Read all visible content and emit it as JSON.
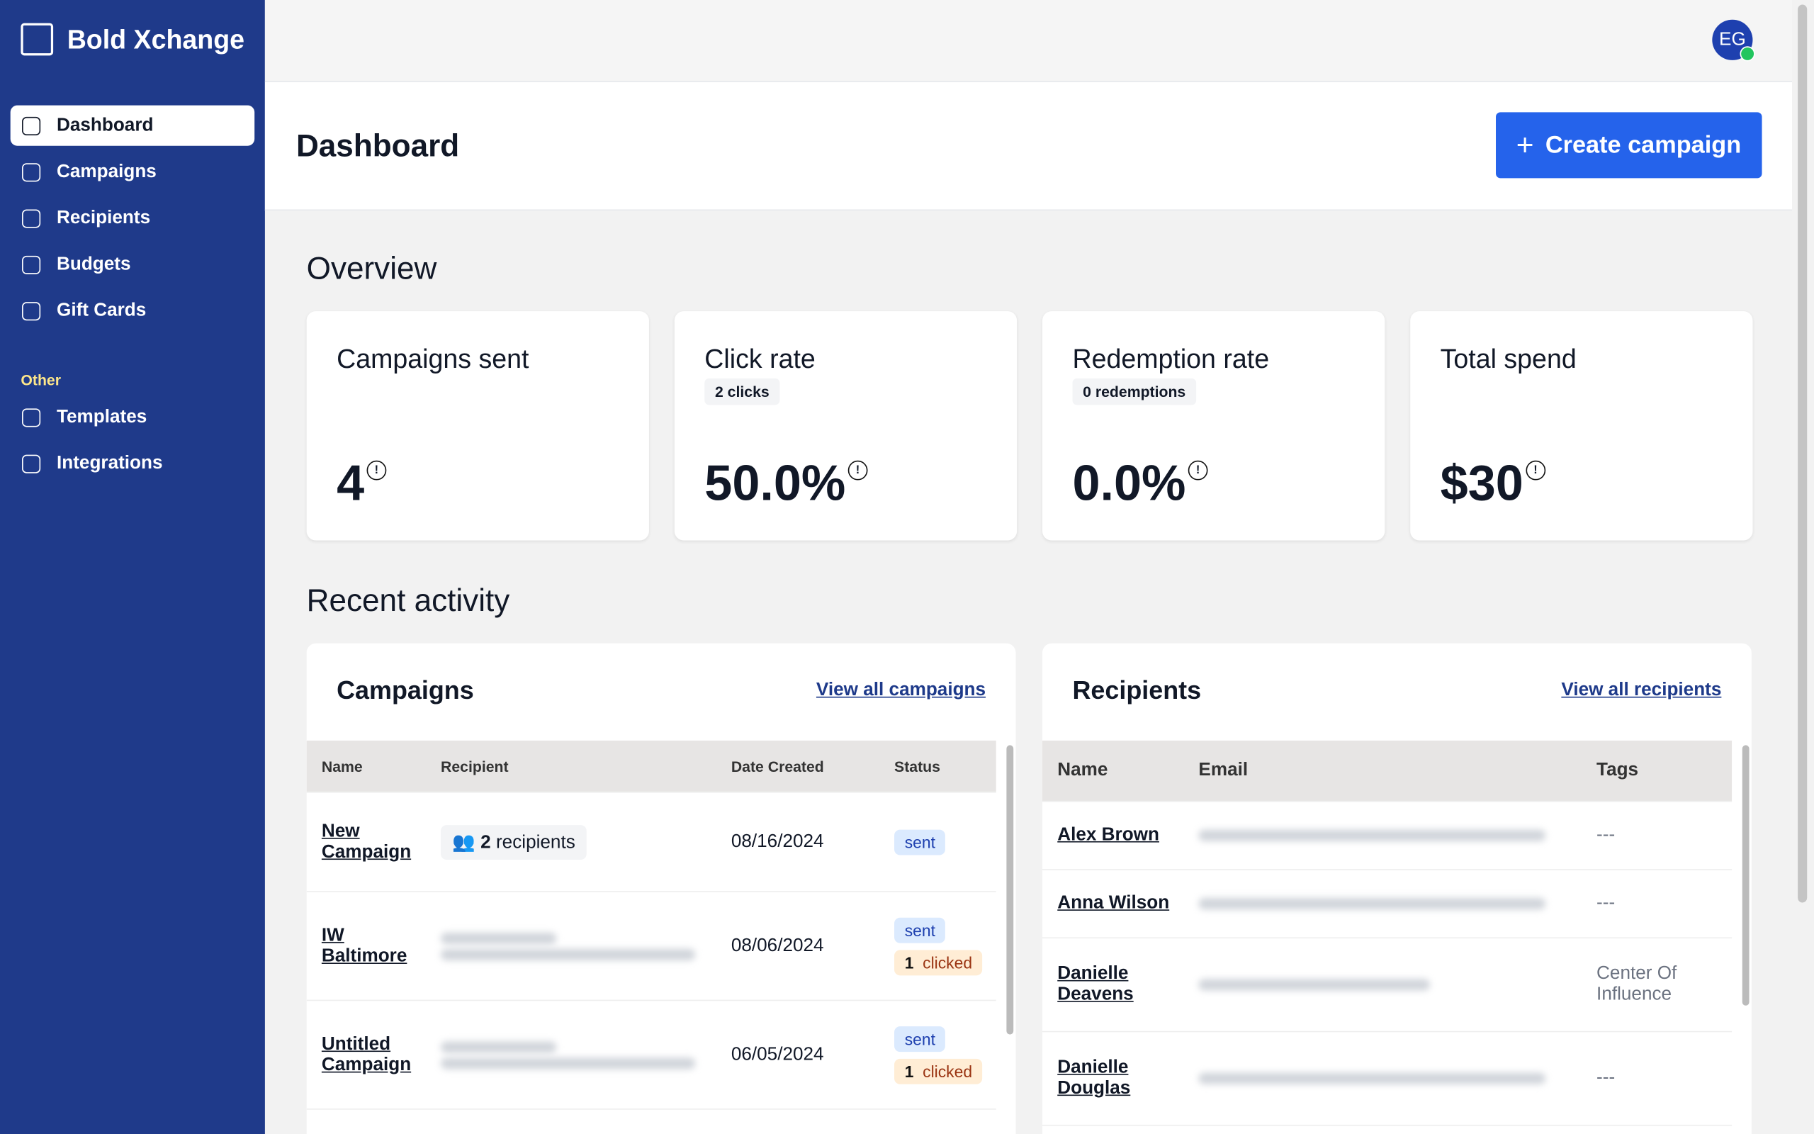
{
  "brand": "Bold Xchange",
  "user_initials": "EG",
  "nav": {
    "main": [
      "Dashboard",
      "Campaigns",
      "Recipients",
      "Budgets",
      "Gift Cards"
    ],
    "other_heading": "Other",
    "other": [
      "Templates",
      "Integrations"
    ]
  },
  "header": {
    "title": "Dashboard",
    "button": "Create campaign"
  },
  "overview": {
    "title": "Overview",
    "cards": [
      {
        "label": "Campaigns sent",
        "value": "4"
      },
      {
        "label": "Click rate",
        "badge": "2 clicks",
        "value": "50.0%"
      },
      {
        "label": "Redemption rate",
        "badge": "0 redemptions",
        "value": "0.0%"
      },
      {
        "label": "Total spend",
        "value": "$30"
      }
    ]
  },
  "recent_title": "Recent activity",
  "campaigns": {
    "title": "Campaigns",
    "link": "View all campaigns",
    "columns": [
      "Name",
      "Recipient",
      "Date Created",
      "Status"
    ],
    "rows": [
      {
        "name": "New Campaign",
        "recipient_count": "2",
        "recipient_label": "recipients",
        "date": "08/16/2024",
        "status": "sent"
      },
      {
        "name": "IW Baltimore",
        "date": "08/06/2024",
        "status": "sent",
        "clicked_count": "1",
        "clicked": "clicked"
      },
      {
        "name": "Untitled Campaign",
        "date": "06/05/2024",
        "status": "sent",
        "clicked_count": "1",
        "clicked": "clicked"
      }
    ]
  },
  "recipients": {
    "title": "Recipients",
    "link": "View all recipients",
    "columns": [
      "Name",
      "Email",
      "Tags"
    ],
    "rows": [
      {
        "name": "Alex Brown",
        "tags": "---"
      },
      {
        "name": "Anna Wilson",
        "tags": "---"
      },
      {
        "name": "Danielle Deavens",
        "tags": "Center Of Influence"
      },
      {
        "name": "Danielle Douglas",
        "tags": "---"
      }
    ]
  }
}
